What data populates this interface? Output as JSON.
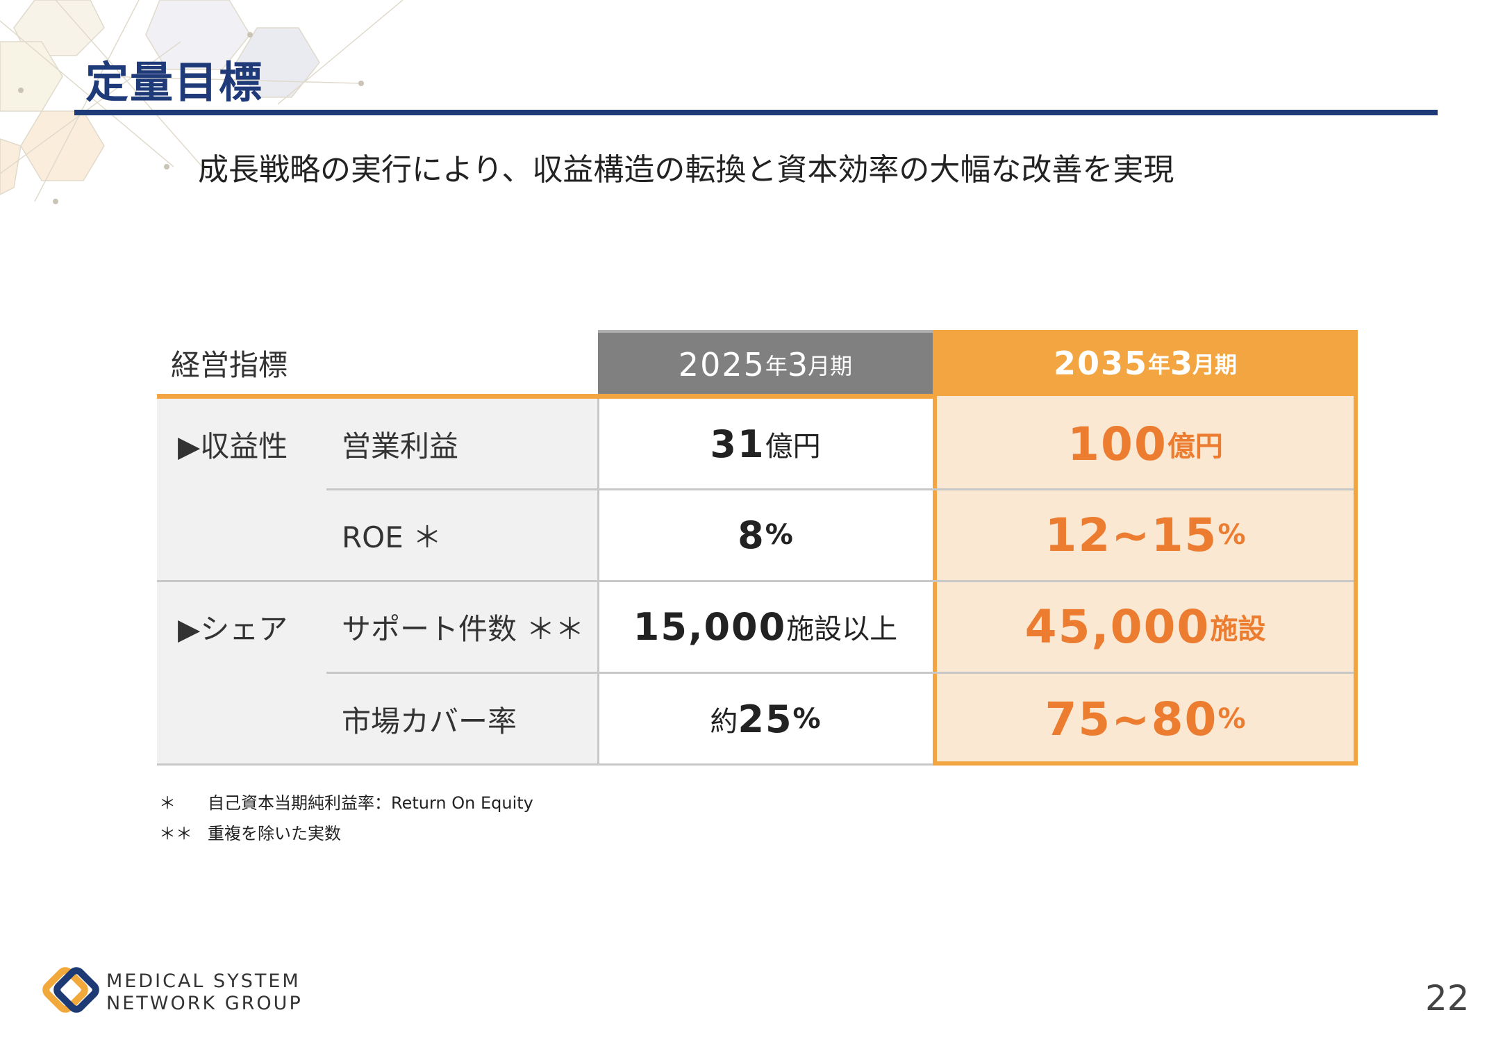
{
  "slide": {
    "title": "定量目標",
    "subtitle": "成長戦略の実行により、収益構造の転換と資本効率の大幅な改善を実現",
    "page_number": "22"
  },
  "table": {
    "header_label": "経営指標",
    "col_2025": {
      "year": "2025",
      "nen": "年",
      "month": "3",
      "suffix": "月期"
    },
    "col_2035": {
      "year": "2035",
      "nen": "年",
      "month": "3",
      "suffix": "月期"
    },
    "groups": [
      {
        "label": "▶収益性"
      },
      {
        "label": "▶シェア"
      }
    ],
    "rows": [
      {
        "metric": "営業利益",
        "v2025_num": "31",
        "v2025_unit": "億円",
        "v2035_num": "100",
        "v2035_unit": "億円"
      },
      {
        "metric": "ROE ＊",
        "v2025_num": "8",
        "v2025_unit": "%",
        "v2035_num": "12~15",
        "v2035_unit": "%"
      },
      {
        "metric": "サポート件数 ＊＊",
        "v2025_num": "15,000",
        "v2025_unit": "施設以上",
        "v2035_num": "45,000",
        "v2035_unit": "施設"
      },
      {
        "metric": "市場カバー率",
        "v2025_prefix": "約",
        "v2025_num": "25",
        "v2025_unit": "%",
        "v2035_num": "75~80",
        "v2035_unit": "%"
      }
    ]
  },
  "footnotes": [
    {
      "mark": "＊",
      "text": "自己資本当期純利益率：Return On Equity"
    },
    {
      "mark": "＊＊",
      "text": "重複を除いた実数"
    }
  ],
  "logo": {
    "line1": "MEDICAL SYSTEM",
    "line2": "NETWORK GROUP"
  },
  "colors": {
    "navy": "#1f3a78",
    "orange": "#f2a541",
    "orange_text": "#ec7c30",
    "peach": "#fbe8d2",
    "header_grey": "#808080"
  }
}
